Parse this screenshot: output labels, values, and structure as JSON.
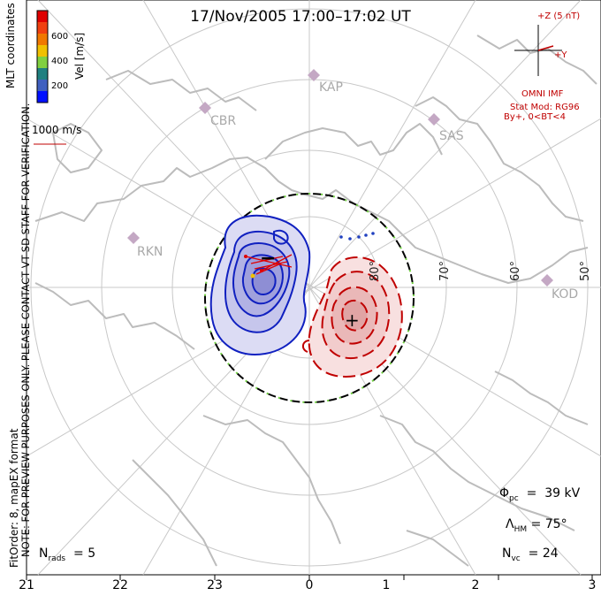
{
  "title": "17/Nov/2005 17:00–17:02 UT",
  "coordinates_label": "MLT coordinates",
  "colorbar": {
    "label": "Vel [m/s]",
    "ticks": [
      "600",
      "400",
      "200"
    ],
    "colors": [
      "#e00000",
      "#f07800",
      "#f0c000",
      "#80d040",
      "#208080",
      "#4060c0",
      "#0010ff"
    ]
  },
  "velocity_scale": "1000 m/s",
  "imf": {
    "z_label": "+Z (5 nT)",
    "y_label": "+Y",
    "source": "OMNI IMF",
    "model": "Stat Mod: RG96",
    "condition": "By+, 0<BT<4"
  },
  "stations": [
    "KAP",
    "CBR",
    "SAS",
    "RKN",
    "KOD"
  ],
  "latitudes": [
    "80°",
    "70°",
    "60°",
    "50°"
  ],
  "mlt_ticks": [
    "21",
    "22",
    "23",
    "0",
    "1",
    "2",
    "3"
  ],
  "note_lines": [
    "NOTE: FOR PREVIEW PURPOSES ONLY. PLEASE CONTACT VT-SD STAFF FOR VERIFICATION.",
    "FitOrder: 8, mapEX format"
  ],
  "stats": {
    "phi_pc": "39 kV",
    "lambda_hm": "75°",
    "n_vc": "24",
    "n_rads": "5"
  },
  "symbols": {
    "min": "−",
    "max": "+"
  }
}
